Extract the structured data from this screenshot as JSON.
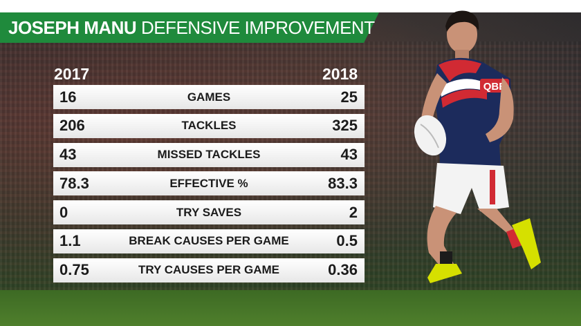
{
  "header": {
    "name": "JOSEPH MANU",
    "subtitle": "DEFENSIVE IMPROVEMENT"
  },
  "columns": {
    "left_year": "2017",
    "right_year": "2018"
  },
  "stats": [
    {
      "label": "GAMES",
      "v2017": "16",
      "v2018": "25"
    },
    {
      "label": "TACKLES",
      "v2017": "206",
      "v2018": "325"
    },
    {
      "label": "MISSED TACKLES",
      "v2017": "43",
      "v2018": "43"
    },
    {
      "label": "EFFECTIVE %",
      "v2017": "78.3",
      "v2018": "83.3"
    },
    {
      "label": "TRY SAVES",
      "v2017": "0",
      "v2018": "2"
    },
    {
      "label": "BREAK CAUSES PER GAME",
      "v2017": "1.1",
      "v2018": "0.5"
    },
    {
      "label": "TRY CAUSES PER GAME",
      "v2017": "0.75",
      "v2018": "0.36"
    }
  ],
  "colors": {
    "banner": "#1f8a3c",
    "row_bg": "#ffffff",
    "text": "#1b1b1b"
  },
  "photo": {
    "jersey_sponsor": "QBE"
  }
}
